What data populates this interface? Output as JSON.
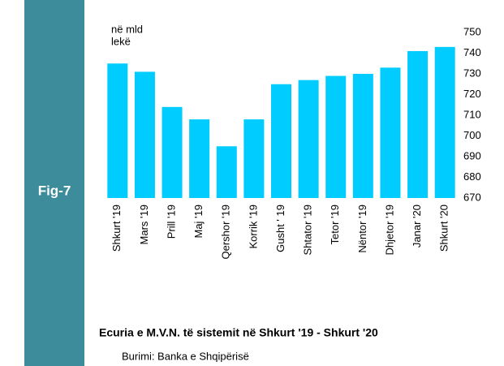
{
  "figure_label": "Fig-7",
  "chart_data": {
    "type": "bar",
    "y_axis_label": [
      "në mld",
      "lekë"
    ],
    "categories": [
      "Shkurt '19",
      "Mars '19",
      "Prill '19",
      "Maj '19",
      "Qershor '19",
      "Korrik '19",
      "Gusht ' 19",
      "Shtator '19",
      "Tetor '19",
      "Nëntor '19",
      "Dhjetor '19",
      "Janar '20",
      "Shkurt '20"
    ],
    "values": [
      735,
      731,
      714,
      708,
      695,
      708,
      725,
      727,
      729,
      730,
      733,
      741,
      743
    ],
    "color": "#00ccff",
    "ylim": [
      670,
      750
    ],
    "yticks": [
      670,
      680,
      690,
      700,
      710,
      720,
      730,
      740,
      750
    ],
    "grid": false,
    "title": "Ecuria e M.V.N. të sistemit në Shkurt '19 - Shkurt '20",
    "source": "Burimi: Banka e Shqipërisë"
  }
}
